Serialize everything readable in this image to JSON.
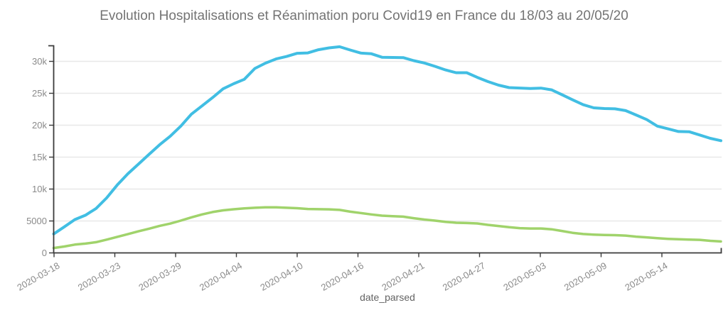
{
  "page": {
    "title": "Evolution Hospitalisations et Réanimation poru Covid19 en France du 18/03 au 20/05/20"
  },
  "chart_data": {
    "type": "line",
    "title": "Evolution Hospitalisations et Réanimation poru Covid19 en France du 18/03 au 20/05/20",
    "xlabel": "date_parsed",
    "ylabel": "",
    "ylim": [
      0,
      32300
    ],
    "grid": true,
    "legend": "none",
    "colors": {
      "hospitalisations": "#41bee3",
      "reanimation": "#a0d36b",
      "axis": "#3b3b3b",
      "gridline": "#e8e8e8",
      "tick_label": "#8a8a8a",
      "title": "#747474"
    },
    "y_ticks": {
      "labels": [
        "0",
        "5000",
        "10k",
        "15k",
        "20k",
        "25k",
        "30k"
      ],
      "values": [
        0,
        5000,
        10000,
        15000,
        20000,
        25000,
        30000
      ]
    },
    "x_tick_labels": [
      "2020-03-18",
      "2020-03-23",
      "2020-03-29",
      "2020-04-04",
      "2020-04-10",
      "2020-04-16",
      "2020-04-21",
      "2020-04-27",
      "2020-05-03",
      "2020-05-09",
      "2020-05-14"
    ],
    "x": [
      "2020-03-18",
      "2020-03-19",
      "2020-03-20",
      "2020-03-21",
      "2020-03-22",
      "2020-03-23",
      "2020-03-24",
      "2020-03-25",
      "2020-03-26",
      "2020-03-27",
      "2020-03-28",
      "2020-03-29",
      "2020-03-30",
      "2020-03-31",
      "2020-04-01",
      "2020-04-02",
      "2020-04-03",
      "2020-04-04",
      "2020-04-05",
      "2020-04-06",
      "2020-04-07",
      "2020-04-08",
      "2020-04-09",
      "2020-04-10",
      "2020-04-11",
      "2020-04-12",
      "2020-04-13",
      "2020-04-14",
      "2020-04-15",
      "2020-04-16",
      "2020-04-17",
      "2020-04-18",
      "2020-04-19",
      "2020-04-20",
      "2020-04-21",
      "2020-04-22",
      "2020-04-23",
      "2020-04-24",
      "2020-04-25",
      "2020-04-26",
      "2020-04-27",
      "2020-04-28",
      "2020-04-29",
      "2020-04-30",
      "2020-05-01",
      "2020-05-02",
      "2020-05-03",
      "2020-05-04",
      "2020-05-05",
      "2020-05-06",
      "2020-05-07",
      "2020-05-08",
      "2020-05-09",
      "2020-05-10",
      "2020-05-11",
      "2020-05-12",
      "2020-05-13",
      "2020-05-14",
      "2020-05-15",
      "2020-05-16",
      "2020-05-17",
      "2020-05-18",
      "2020-05-19",
      "2020-05-20"
    ],
    "series": [
      {
        "name": "Hospitalisations",
        "values": [
          2972,
          4073,
          5226,
          5900,
          6954,
          8608,
          10637,
          12385,
          13904,
          15438,
          16937,
          18270,
          19861,
          21732,
          23018,
          24323,
          25697,
          26505,
          27186,
          28891,
          29722,
          30375,
          30767,
          31267,
          31320,
          31826,
          32113,
          32292,
          31779,
          31305,
          31190,
          30639,
          30610,
          30584,
          30106,
          29741,
          29219,
          28658,
          28222,
          28217,
          27484,
          26834,
          26283,
          25887,
          25827,
          25760,
          25815,
          25548,
          24775,
          23983,
          23208,
          22724,
          22614,
          22569,
          22284,
          21595,
          20883,
          19861,
          19432,
          19015,
          18978,
          18468,
          17941,
          17583
        ]
      },
      {
        "name": "Réanimation",
        "values": [
          771,
          1002,
          1297,
          1453,
          1674,
          2080,
          2516,
          2935,
          3375,
          3787,
          4236,
          4592,
          5056,
          5565,
          6017,
          6399,
          6662,
          6838,
          6978,
          7072,
          7131,
          7148,
          7066,
          7004,
          6883,
          6845,
          6821,
          6730,
          6457,
          6248,
          6027,
          5833,
          5744,
          5683,
          5433,
          5218,
          5053,
          4870,
          4725,
          4682,
          4608,
          4387,
          4207,
          4019,
          3878,
          3827,
          3819,
          3696,
          3430,
          3147,
          2961,
          2868,
          2812,
          2776,
          2712,
          2542,
          2428,
          2299,
          2203,
          2132,
          2087,
          2048,
          1894,
          1794
        ]
      }
    ]
  }
}
